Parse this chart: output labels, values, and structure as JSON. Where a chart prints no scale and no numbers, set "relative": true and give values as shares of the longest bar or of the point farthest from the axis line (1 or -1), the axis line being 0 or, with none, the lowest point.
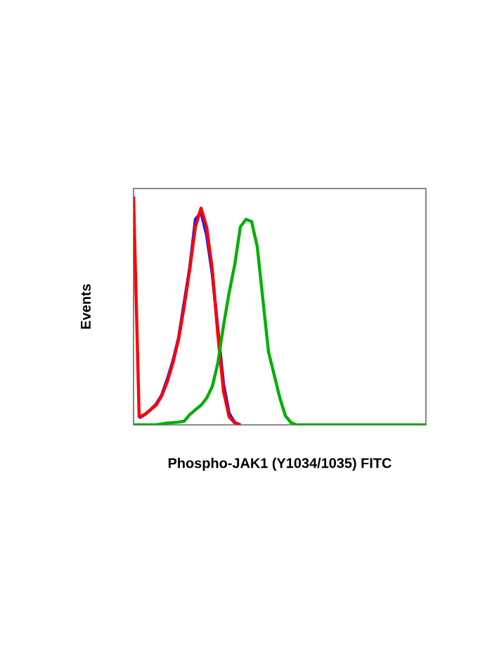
{
  "chart_data": {
    "type": "line",
    "relative": true,
    "xlabel": "Phospho-JAK1 (Y1034/1035) FITC",
    "ylabel": "Events",
    "tick_labels": false,
    "categories": [
      null,
      null,
      null,
      null,
      null,
      null,
      null,
      null,
      null,
      null,
      null,
      null,
      null,
      null,
      null,
      null,
      null,
      null,
      null,
      null,
      null,
      null,
      null,
      null,
      null,
      null,
      null,
      null,
      null,
      null,
      null,
      null,
      null,
      null,
      null,
      null,
      null,
      null,
      null,
      null,
      null,
      null,
      null,
      null,
      null,
      null,
      null,
      null,
      null,
      null,
      null,
      null,
      null
    ],
    "series": [
      {
        "color": "#1a1aff",
        "values": [
          null,
          0.03,
          0.045,
          0.066,
          0.09,
          0.13,
          0.2,
          0.28,
          0.38,
          null,
          0.69,
          0.9,
          0.93,
          0.83,
          0.66,
          null,
          0.18,
          0.05,
          0.01,
          0,
          null,
          null,
          null,
          null,
          null,
          null,
          null,
          null,
          null,
          null,
          null,
          null,
          null,
          null,
          null,
          null,
          null,
          null,
          null,
          null,
          null,
          null,
          null,
          null,
          null,
          null,
          null,
          null,
          null,
          null,
          null,
          null,
          null
        ]
      },
      {
        "color": "#ff0000",
        "values": [
          1.0,
          0.035,
          0.045,
          0.066,
          0.086,
          0.127,
          0.189,
          0.271,
          0.374,
          0.517,
          0.682,
          0.867,
          0.949,
          0.867,
          0.682,
          0.394,
          0.148,
          0.035,
          0.008,
          0,
          null,
          null,
          null,
          null,
          null,
          null,
          null,
          null,
          null,
          null,
          null,
          null,
          null,
          null,
          null,
          null,
          null,
          null,
          null,
          null,
          null,
          null,
          null,
          null,
          null,
          null,
          null,
          null,
          null,
          null,
          null,
          null,
          null
        ]
      },
      {
        "color": "#00b000",
        "values": [
          0,
          0,
          0,
          0,
          0,
          0.004,
          0.008,
          0.01,
          0.012,
          0.016,
          0.045,
          0.066,
          0.086,
          0.117,
          0.168,
          0.271,
          0.435,
          0.579,
          0.702,
          0.867,
          0.9,
          0.89,
          0.78,
          0.55,
          0.32,
          0.22,
          0.12,
          0.04,
          0.01,
          0,
          0,
          0,
          0,
          0,
          0,
          0,
          0,
          0,
          0,
          0,
          0,
          0,
          0,
          0,
          0,
          0,
          0,
          0,
          0,
          0,
          0,
          0,
          0
        ]
      }
    ]
  }
}
